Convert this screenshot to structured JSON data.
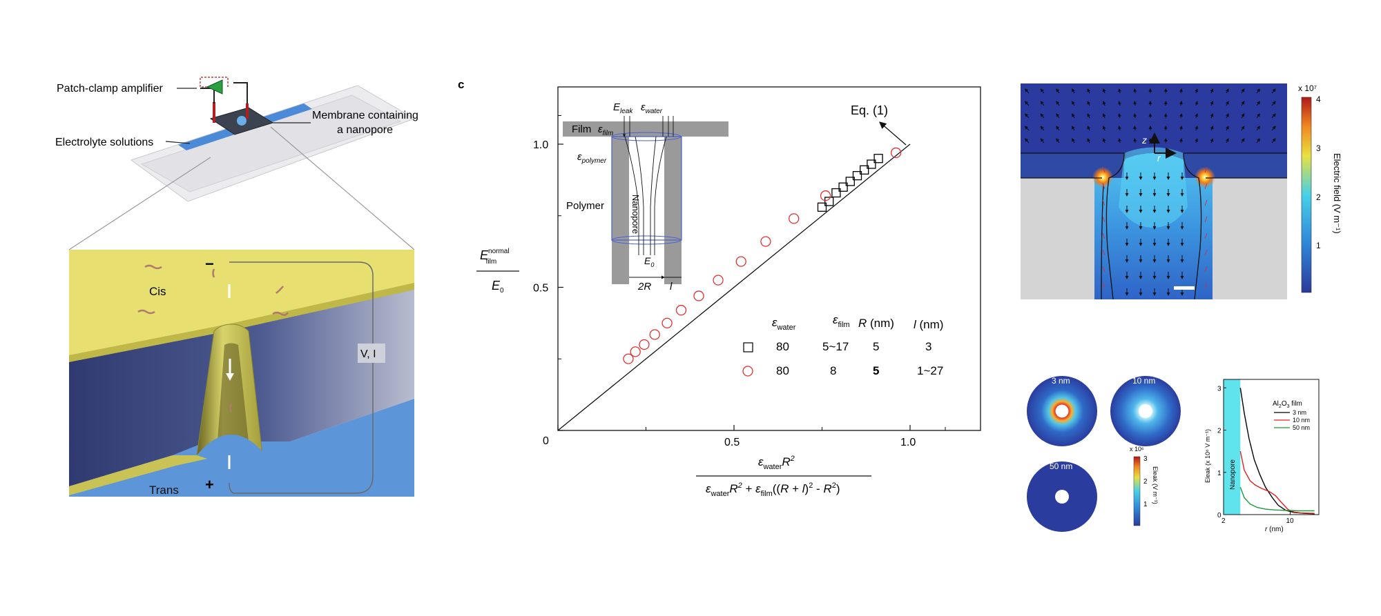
{
  "panel_a": {
    "amplifier_label": "Patch-clamp amplifier",
    "electrolyte_label": "Electrolyte solutions",
    "membrane_label_1": "Membrane containing",
    "membrane_label_2": "a nanopore",
    "cis_label": "Cis",
    "trans_label": "Trans",
    "minus_sign": "−",
    "plus_sign": "+",
    "vi_label": "V, I",
    "colors": {
      "film": "#e4de6e",
      "water": "#5b93d6",
      "membrane": "#3a4578"
    }
  },
  "panel_c": {
    "panel_letter": "c",
    "inset": {
      "e_leak": "E",
      "e_leak_sub": "leak",
      "eps_water": "ε",
      "eps_water_sub": "water",
      "film": "Film",
      "eps_film": "ε",
      "eps_film_sub": "film",
      "eps_polymer": "ε",
      "eps_polymer_sub": "polymer",
      "polymer": "Polymer",
      "nanopore": "Nanopore",
      "e0": "E",
      "e0_sub": "0",
      "two_r": "2R",
      "l": "l"
    },
    "eq_label": "Eq. (1)",
    "ylabel_top": "E",
    "ylabel_top_sup": "normal",
    "ylabel_top_sub": "film",
    "ylabel_bottom": "E",
    "ylabel_bottom_sub": "0",
    "xlabel_num": "εwaterR²",
    "xlabel_den": "εwaterR² + εfilm((R + l)² - R²)",
    "legend_table": {
      "headers": [
        "εwater",
        "εfilm",
        "R (nm)",
        "l (nm)"
      ],
      "rows": [
        [
          "80",
          "5~17",
          "5",
          "3"
        ],
        [
          "80",
          "8",
          "5",
          "1~27"
        ]
      ]
    }
  },
  "chart_data": [
    {
      "type": "scatter",
      "title": "",
      "xlabel": "εwaterR² / (εwaterR² + εfilm((R + l)² - R²))",
      "ylabel": "Efilm normal / E0",
      "xlim": [
        0,
        1.2
      ],
      "ylim": [
        0,
        1.2
      ],
      "x_ticks": [
        "0",
        "0.5",
        "1.0"
      ],
      "y_ticks": [
        "0",
        "0.5",
        "1.0"
      ],
      "line": {
        "name": "Eq. (1)",
        "x": [
          0,
          1.0
        ],
        "y": [
          0,
          1.0
        ]
      },
      "series": [
        {
          "marker": "square",
          "color": "#000000",
          "x": [
            0.75,
            0.77,
            0.79,
            0.81,
            0.83,
            0.85,
            0.87,
            0.89,
            0.91
          ],
          "y": [
            0.78,
            0.8,
            0.83,
            0.85,
            0.87,
            0.89,
            0.91,
            0.93,
            0.95
          ]
        },
        {
          "marker": "circle",
          "color": "#e03030",
          "x": [
            0.2,
            0.22,
            0.245,
            0.275,
            0.31,
            0.35,
            0.4,
            0.455,
            0.52,
            0.59,
            0.67,
            0.76,
            0.96
          ],
          "y": [
            0.25,
            0.275,
            0.3,
            0.335,
            0.375,
            0.42,
            0.47,
            0.525,
            0.59,
            0.66,
            0.74,
            0.82,
            0.97
          ]
        }
      ]
    },
    {
      "type": "heatmap",
      "title": "",
      "colorbar_label": "Electric field (V m⁻¹)",
      "colorbar_exp": "x 10⁷",
      "colorbar_ticks": [
        "1",
        "2",
        "3",
        "4"
      ],
      "axis_z": "z",
      "axis_r": "r"
    },
    {
      "type": "heatmap",
      "title": "",
      "labels": [
        "3 nm",
        "10 nm",
        "50 nm"
      ],
      "colorbar_exp": "x 10⁶",
      "colorbar_ticks": [
        "1",
        "2",
        "3"
      ],
      "colorbar_label": "Eleak (V m⁻¹)"
    },
    {
      "type": "line",
      "title": "",
      "xlabel": "r (nm)",
      "ylabel": "Eleak (x 10⁶ V m⁻¹)",
      "x_ticks": [
        "2",
        "10"
      ],
      "y_ticks": [
        "0",
        "1",
        "2",
        "3"
      ],
      "ylim": [
        0,
        3.2
      ],
      "band_label": "Nanopore",
      "legend_title": "Al₂O₃ film",
      "series": [
        {
          "name": "3 nm",
          "color": "#000000",
          "x": [
            3.0,
            3.3,
            3.7,
            4.2,
            4.8,
            5.5,
            6.5,
            7.5,
            9,
            11,
            14,
            18
          ],
          "y": [
            3.0,
            2.4,
            1.8,
            1.3,
            0.95,
            0.65,
            0.4,
            0.22,
            0.1,
            0.05,
            0.03,
            0.02
          ]
        },
        {
          "name": "10 nm",
          "color": "#e02020",
          "x": [
            3.0,
            3.3,
            3.8,
            4.3,
            5.0,
            6.0,
            7.0,
            8.0,
            9.5,
            11,
            13,
            18
          ],
          "y": [
            1.5,
            1.05,
            0.8,
            0.7,
            0.62,
            0.55,
            0.45,
            0.3,
            0.12,
            0.06,
            0.04,
            0.03
          ]
        },
        {
          "name": "50 nm",
          "color": "#1a9a3a",
          "x": [
            3.0,
            3.3,
            3.8,
            4.5,
            5.5,
            7,
            9,
            12,
            15,
            18
          ],
          "y": [
            0.65,
            0.4,
            0.25,
            0.17,
            0.13,
            0.11,
            0.1,
            0.09,
            0.09,
            0.09
          ]
        }
      ]
    }
  ]
}
